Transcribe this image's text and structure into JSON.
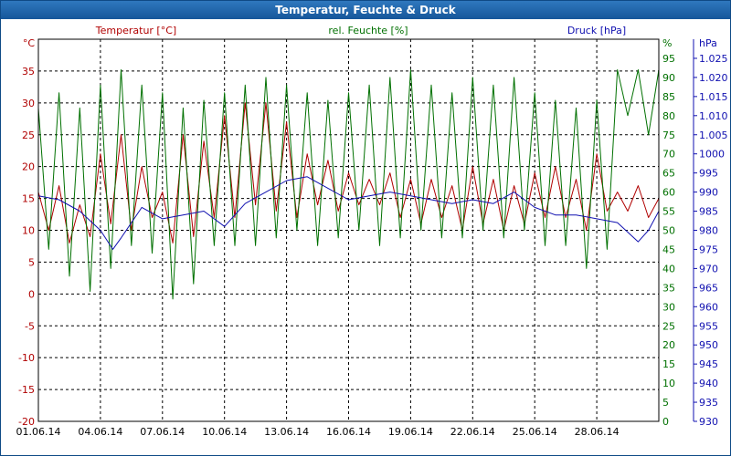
{
  "window": {
    "title": "Temperatur, Feuchte & Druck"
  },
  "colors": {
    "temperature": "#b00000",
    "humidity": "#007000",
    "pressure": "#1010b0",
    "grid": "#000000",
    "title_bar": "#1e62a8"
  },
  "chart_data": {
    "type": "line",
    "title": "Temperatur, Feuchte & Druck",
    "grid": true,
    "x": {
      "tick_labels": [
        "01.06.14",
        "04.06.14",
        "07.06.14",
        "10.06.14",
        "13.06.14",
        "16.06.14",
        "19.06.14",
        "22.06.14",
        "25.06.14",
        "28.06.14"
      ],
      "range_days": [
        0,
        30
      ]
    },
    "axes": {
      "temperature": {
        "label": "Temperatur [°C]",
        "unit": "°C",
        "range": [
          -20,
          40
        ],
        "ticks": [
          35,
          30,
          25,
          20,
          15,
          10,
          5,
          0,
          -5,
          -10,
          -15,
          -20
        ]
      },
      "humidity": {
        "label": "rel. Feuchte [%]",
        "unit": "%",
        "range": [
          0,
          100
        ],
        "ticks": [
          95,
          90,
          85,
          80,
          75,
          70,
          65,
          60,
          55,
          50,
          45,
          40,
          35,
          30,
          25,
          20,
          15,
          10,
          5,
          0
        ]
      },
      "pressure": {
        "label": "Druck [hPa]",
        "unit": "hPa",
        "range": [
          930,
          1030
        ],
        "ticks": [
          "1.025",
          "1.020",
          "1.015",
          "1.010",
          "1.005",
          "1000",
          "995",
          "990",
          "985",
          "980",
          "975",
          "970",
          "965",
          "960",
          "955",
          "950",
          "945",
          "940",
          "935",
          "930"
        ]
      }
    },
    "series": [
      {
        "name": "Temperatur [°C]",
        "axis": "temperature",
        "points": [
          [
            0,
            16
          ],
          [
            0.5,
            10
          ],
          [
            1,
            17
          ],
          [
            1.5,
            8
          ],
          [
            2,
            14
          ],
          [
            2.5,
            9
          ],
          [
            3,
            22
          ],
          [
            3.5,
            11
          ],
          [
            4,
            25
          ],
          [
            4.5,
            10
          ],
          [
            5,
            20
          ],
          [
            5.5,
            12
          ],
          [
            6,
            16
          ],
          [
            6.5,
            8
          ],
          [
            7,
            25
          ],
          [
            7.5,
            9
          ],
          [
            8,
            24
          ],
          [
            8.5,
            12
          ],
          [
            9,
            28
          ],
          [
            9.5,
            12
          ],
          [
            10,
            30
          ],
          [
            10.5,
            14
          ],
          [
            11,
            30
          ],
          [
            11.5,
            13
          ],
          [
            12,
            27
          ],
          [
            12.5,
            12
          ],
          [
            13,
            22
          ],
          [
            13.5,
            14
          ],
          [
            14,
            21
          ],
          [
            14.5,
            13
          ],
          [
            15,
            19
          ],
          [
            15.5,
            14
          ],
          [
            16,
            18
          ],
          [
            16.5,
            14
          ],
          [
            17,
            19
          ],
          [
            17.5,
            12
          ],
          [
            18,
            18
          ],
          [
            18.5,
            11
          ],
          [
            19,
            18
          ],
          [
            19.5,
            12
          ],
          [
            20,
            17
          ],
          [
            20.5,
            10
          ],
          [
            21,
            20
          ],
          [
            21.5,
            11
          ],
          [
            22,
            18
          ],
          [
            22.5,
            10
          ],
          [
            23,
            17
          ],
          [
            23.5,
            11
          ],
          [
            24,
            19
          ],
          [
            24.5,
            12
          ],
          [
            25,
            20
          ],
          [
            25.5,
            12
          ],
          [
            26,
            18
          ],
          [
            26.5,
            10
          ],
          [
            27,
            22
          ],
          [
            27.5,
            13
          ],
          [
            28,
            16
          ],
          [
            28.5,
            13
          ],
          [
            29,
            17
          ],
          [
            29.5,
            12
          ],
          [
            30,
            15
          ]
        ]
      },
      {
        "name": "rel. Feuchte [%]",
        "axis": "humidity",
        "points": [
          [
            0,
            82
          ],
          [
            0.5,
            45
          ],
          [
            1,
            86
          ],
          [
            1.5,
            38
          ],
          [
            2,
            82
          ],
          [
            2.5,
            34
          ],
          [
            3,
            88
          ],
          [
            3.5,
            40
          ],
          [
            4,
            92
          ],
          [
            4.5,
            46
          ],
          [
            5,
            88
          ],
          [
            5.5,
            44
          ],
          [
            6,
            86
          ],
          [
            6.5,
            32
          ],
          [
            7,
            82
          ],
          [
            7.5,
            36
          ],
          [
            8,
            84
          ],
          [
            8.5,
            46
          ],
          [
            9,
            86
          ],
          [
            9.5,
            46
          ],
          [
            10,
            88
          ],
          [
            10.5,
            46
          ],
          [
            11,
            90
          ],
          [
            11.5,
            48
          ],
          [
            12,
            88
          ],
          [
            12.5,
            50
          ],
          [
            13,
            86
          ],
          [
            13.5,
            46
          ],
          [
            14,
            84
          ],
          [
            14.5,
            48
          ],
          [
            15,
            86
          ],
          [
            15.5,
            50
          ],
          [
            16,
            88
          ],
          [
            16.5,
            46
          ],
          [
            17,
            90
          ],
          [
            17.5,
            48
          ],
          [
            18,
            92
          ],
          [
            18.5,
            50
          ],
          [
            19,
            88
          ],
          [
            19.5,
            48
          ],
          [
            20,
            86
          ],
          [
            20.5,
            48
          ],
          [
            21,
            90
          ],
          [
            21.5,
            50
          ],
          [
            22,
            88
          ],
          [
            22.5,
            48
          ],
          [
            23,
            90
          ],
          [
            23.5,
            50
          ],
          [
            24,
            86
          ],
          [
            24.5,
            46
          ],
          [
            25,
            84
          ],
          [
            25.5,
            46
          ],
          [
            26,
            82
          ],
          [
            26.5,
            40
          ],
          [
            27,
            84
          ],
          [
            27.5,
            45
          ],
          [
            28,
            92
          ],
          [
            28.5,
            80
          ],
          [
            29,
            92
          ],
          [
            29.5,
            75
          ],
          [
            30,
            92
          ]
        ]
      },
      {
        "name": "Druck [hPa]",
        "axis": "pressure",
        "points": [
          [
            0,
            989
          ],
          [
            1,
            988
          ],
          [
            2,
            985
          ],
          [
            3,
            980
          ],
          [
            3.6,
            975
          ],
          [
            4,
            978
          ],
          [
            5,
            986
          ],
          [
            6,
            983
          ],
          [
            7,
            984
          ],
          [
            8,
            985
          ],
          [
            9,
            981
          ],
          [
            10,
            987
          ],
          [
            11,
            990
          ],
          [
            12,
            993
          ],
          [
            13,
            994
          ],
          [
            14,
            991
          ],
          [
            15,
            988
          ],
          [
            16,
            989
          ],
          [
            17,
            990
          ],
          [
            18,
            989
          ],
          [
            19,
            988
          ],
          [
            20,
            987
          ],
          [
            21,
            988
          ],
          [
            22,
            987
          ],
          [
            23,
            990
          ],
          [
            24,
            986
          ],
          [
            25,
            984
          ],
          [
            26,
            984
          ],
          [
            27,
            983
          ],
          [
            28,
            982
          ],
          [
            29,
            977
          ],
          [
            29.5,
            980
          ],
          [
            30,
            985
          ]
        ]
      }
    ],
    "legend": "top"
  }
}
